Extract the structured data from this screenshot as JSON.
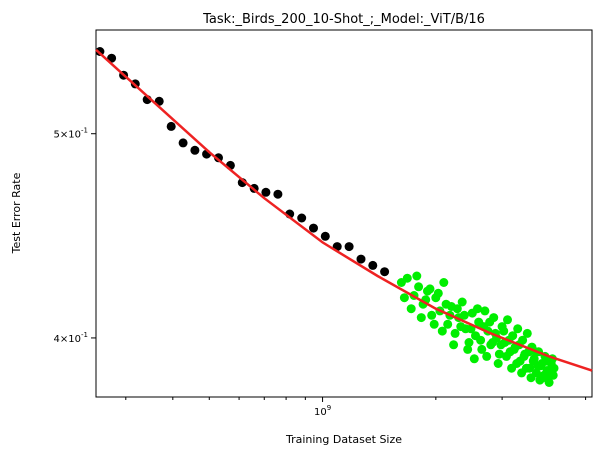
{
  "chart_data": {
    "type": "scatter",
    "title": "Task:_Birds_200_10-Shot_;_Model:_ViT/B/16",
    "xlabel": "Training Dataset Size",
    "ylabel": "Test Error Rate",
    "x_scale": "log",
    "y_scale": "log",
    "xlim": [
      250000000,
      5200000000
    ],
    "ylim": [
      0.375,
      0.56
    ],
    "x_ticks": [
      {
        "value": 1000000000,
        "label": "10^9"
      }
    ],
    "y_ticks": [
      {
        "value": 0.4,
        "label": "4×10^-1"
      },
      {
        "value": 0.5,
        "label": "5×10^-1"
      }
    ],
    "grid": false,
    "legend": "none",
    "series": [
      {
        "color": "#000000",
        "points": [
          [
            256000000,
            0.547
          ],
          [
            275000000,
            0.543
          ],
          [
            296000000,
            0.533
          ],
          [
            318000000,
            0.528
          ],
          [
            342000000,
            0.519
          ],
          [
            368000000,
            0.518
          ],
          [
            396000000,
            0.504
          ],
          [
            426000000,
            0.495
          ],
          [
            458000000,
            0.491
          ],
          [
            492000000,
            0.489
          ],
          [
            529000000,
            0.487
          ],
          [
            569000000,
            0.483
          ],
          [
            612000000,
            0.474
          ],
          [
            658000000,
            0.471
          ],
          [
            707000000,
            0.469
          ],
          [
            761000000,
            0.468
          ],
          [
            818000000,
            0.458
          ],
          [
            880000000,
            0.456
          ],
          [
            946000000,
            0.451
          ],
          [
            1017000000,
            0.447
          ],
          [
            1094000000,
            0.442
          ],
          [
            1176000000,
            0.442
          ],
          [
            1265000000,
            0.436
          ],
          [
            1360000000,
            0.433
          ],
          [
            1462000000,
            0.43
          ]
        ]
      },
      {
        "color": "#00ee00",
        "points": [
          [
            1620000000,
            0.425
          ],
          [
            1680000000,
            0.427
          ],
          [
            1750000000,
            0.419
          ],
          [
            1800000000,
            0.423
          ],
          [
            1850000000,
            0.415
          ],
          [
            1900000000,
            0.421
          ],
          [
            1950000000,
            0.41
          ],
          [
            2000000000,
            0.418
          ],
          [
            2050000000,
            0.412
          ],
          [
            2100000000,
            0.425
          ],
          [
            2150000000,
            0.406
          ],
          [
            2200000000,
            0.414
          ],
          [
            2250000000,
            0.402
          ],
          [
            2300000000,
            0.409
          ],
          [
            2350000000,
            0.416
          ],
          [
            2400000000,
            0.404
          ],
          [
            2450000000,
            0.398
          ],
          [
            2500000000,
            0.411
          ],
          [
            2550000000,
            0.401
          ],
          [
            2600000000,
            0.407
          ],
          [
            2650000000,
            0.395
          ],
          [
            2700000000,
            0.412
          ],
          [
            2750000000,
            0.403
          ],
          [
            2800000000,
            0.397
          ],
          [
            2850000000,
            0.409
          ],
          [
            2900000000,
            0.4
          ],
          [
            2950000000,
            0.393
          ],
          [
            3000000000,
            0.405
          ],
          [
            3050000000,
            0.398
          ],
          [
            3100000000,
            0.408
          ],
          [
            3150000000,
            0.394
          ],
          [
            3200000000,
            0.401
          ],
          [
            3250000000,
            0.396
          ],
          [
            3300000000,
            0.404
          ],
          [
            3350000000,
            0.39
          ],
          [
            3400000000,
            0.399
          ],
          [
            3450000000,
            0.393
          ],
          [
            3500000000,
            0.402
          ],
          [
            3550000000,
            0.387
          ],
          [
            3600000000,
            0.396
          ],
          [
            3650000000,
            0.391
          ],
          [
            3700000000,
            0.385
          ],
          [
            3750000000,
            0.394
          ],
          [
            3800000000,
            0.388
          ],
          [
            3850000000,
            0.383
          ],
          [
            3900000000,
            0.392
          ],
          [
            3950000000,
            0.386
          ],
          [
            4000000000,
            0.381
          ],
          [
            4050000000,
            0.389
          ],
          [
            4100000000,
            0.384
          ],
          [
            1650000000,
            0.418
          ],
          [
            1720000000,
            0.413
          ],
          [
            1780000000,
            0.428
          ],
          [
            1830000000,
            0.409
          ],
          [
            1880000000,
            0.417
          ],
          [
            1930000000,
            0.422
          ],
          [
            1980000000,
            0.406
          ],
          [
            2030000000,
            0.42
          ],
          [
            2080000000,
            0.403
          ],
          [
            2130000000,
            0.415
          ],
          [
            2180000000,
            0.41
          ],
          [
            2230000000,
            0.397
          ],
          [
            2280000000,
            0.413
          ],
          [
            2330000000,
            0.405
          ],
          [
            2380000000,
            0.41
          ],
          [
            2430000000,
            0.395
          ],
          [
            2480000000,
            0.404
          ],
          [
            2530000000,
            0.391
          ],
          [
            2580000000,
            0.413
          ],
          [
            2630000000,
            0.399
          ],
          [
            2680000000,
            0.405
          ],
          [
            2730000000,
            0.392
          ],
          [
            2780000000,
            0.407
          ],
          [
            2830000000,
            0.398
          ],
          [
            2880000000,
            0.402
          ],
          [
            2930000000,
            0.389
          ],
          [
            2980000000,
            0.397
          ],
          [
            3030000000,
            0.403
          ],
          [
            3080000000,
            0.392
          ],
          [
            3130000000,
            0.399
          ],
          [
            3180000000,
            0.387
          ],
          [
            3230000000,
            0.395
          ],
          [
            3280000000,
            0.389
          ],
          [
            3330000000,
            0.397
          ],
          [
            3380000000,
            0.385
          ],
          [
            3430000000,
            0.392
          ],
          [
            3480000000,
            0.387
          ],
          [
            3530000000,
            0.394
          ],
          [
            3580000000,
            0.383
          ],
          [
            3630000000,
            0.39
          ],
          [
            3680000000,
            0.394
          ],
          [
            3730000000,
            0.388
          ],
          [
            3780000000,
            0.382
          ],
          [
            3830000000,
            0.389
          ],
          [
            3880000000,
            0.384
          ],
          [
            3930000000,
            0.39
          ],
          [
            3980000000,
            0.383
          ],
          [
            4030000000,
            0.386
          ],
          [
            4080000000,
            0.391
          ],
          [
            4120000000,
            0.387
          ]
        ]
      }
    ],
    "fit_line": {
      "color": "#ee2222",
      "x": [
        250000000,
        350000000,
        500000000,
        700000000,
        1000000000,
        1400000000,
        2000000000,
        2800000000,
        4000000000,
        5200000000
      ],
      "y": [
        0.548,
        0.519,
        0.49,
        0.466,
        0.444,
        0.428,
        0.413,
        0.402,
        0.392,
        0.386
      ]
    }
  }
}
